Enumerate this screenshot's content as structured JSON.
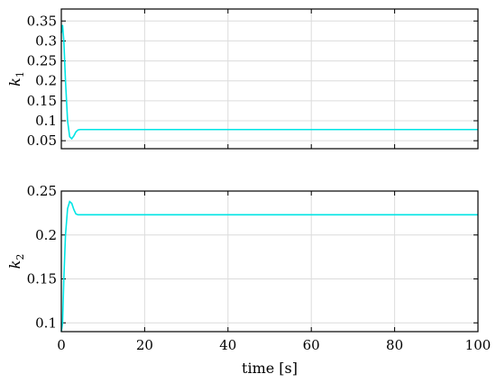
{
  "chart_data": [
    {
      "type": "line",
      "ylabel": "k",
      "ylabel_subscript": "1",
      "xlim": [
        0,
        100
      ],
      "ylim": [
        0.03,
        0.38
      ],
      "yticks": [
        0.05,
        0.1,
        0.15,
        0.2,
        0.25,
        0.3,
        0.35
      ],
      "ytick_labels": [
        "0.05",
        "0.1",
        "0.15",
        "0.2",
        "0.25",
        "0.3",
        "0.35"
      ],
      "xticks": [
        0,
        20,
        40,
        60,
        80,
        100
      ],
      "show_xtick_labels": false,
      "grid": true,
      "color": "#00e5e5",
      "series": [
        {
          "x": [
            0,
            0.3,
            0.6,
            1.0,
            1.5,
            2.0,
            2.5,
            3.0,
            3.5,
            4.0,
            4.5,
            5.0,
            6.0,
            8.0,
            10.0,
            100.0
          ],
          "values": [
            0.32,
            0.34,
            0.3,
            0.2,
            0.1,
            0.06,
            0.055,
            0.062,
            0.072,
            0.077,
            0.078,
            0.078,
            0.078,
            0.078,
            0.078,
            0.078
          ]
        }
      ]
    },
    {
      "type": "line",
      "ylabel": "k",
      "ylabel_subscript": "2",
      "xlabel": "time [s]",
      "xlim": [
        0,
        100
      ],
      "ylim": [
        0.09,
        0.25
      ],
      "yticks": [
        0.1,
        0.15,
        0.2,
        0.25
      ],
      "ytick_labels": [
        "0.1",
        "0.15",
        "0.2",
        "0.25"
      ],
      "xticks": [
        0,
        20,
        40,
        60,
        80,
        100
      ],
      "xtick_labels": [
        "0",
        "20",
        "40",
        "60",
        "80",
        "100"
      ],
      "grid": true,
      "color": "#00e5e5",
      "series": [
        {
          "x": [
            0,
            0.3,
            0.6,
            1.0,
            1.5,
            2.0,
            2.5,
            3.0,
            3.5,
            4.0,
            5.0,
            6.0,
            8.0,
            10.0,
            100.0
          ],
          "values": [
            0.09,
            0.1,
            0.15,
            0.2,
            0.23,
            0.238,
            0.236,
            0.229,
            0.224,
            0.223,
            0.223,
            0.223,
            0.223,
            0.223,
            0.223
          ]
        }
      ]
    }
  ]
}
